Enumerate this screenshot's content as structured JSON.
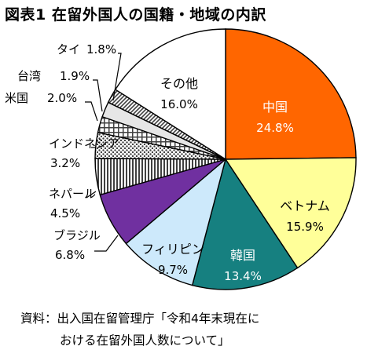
{
  "title": "図表1 在留外国人の国籍・地域の内訳",
  "source": {
    "line1": "資料：出入国在留管理庁「令和4年末現在に",
    "line2": "おける在留外国人数について」"
  },
  "chart_data": {
    "type": "pie",
    "unit": "%",
    "slices": [
      {
        "label": "中国",
        "value": 24.8,
        "value_label": "24.8%",
        "color": "#ff6600",
        "pattern": "solid",
        "text_color": "#ffffff"
      },
      {
        "label": "ベトナム",
        "value": 15.9,
        "value_label": "15.9%",
        "color": "#ffff99",
        "pattern": "solid",
        "text_color": "#000000"
      },
      {
        "label": "韓国",
        "value": 13.4,
        "value_label": "13.4%",
        "color": "#168080",
        "pattern": "solid",
        "text_color": "#ffffff"
      },
      {
        "label": "フィリピン",
        "value": 9.7,
        "value_label": "9.7%",
        "color": "#cde9fb",
        "pattern": "solid",
        "text_color": "#000000"
      },
      {
        "label": "ブラジル",
        "value": 6.8,
        "value_label": "6.8%",
        "color": "#7030a0",
        "pattern": "solid",
        "text_color": "#000000"
      },
      {
        "label": "ネパール",
        "value": 4.5,
        "value_label": "4.5%",
        "color": "#404040",
        "pattern": "vertical-lines",
        "text_color": "#000000"
      },
      {
        "label": "インドネシア",
        "value": 3.2,
        "value_label": "3.2%",
        "color": "#404040",
        "pattern": "dots",
        "text_color": "#000000"
      },
      {
        "label": "米国",
        "value": 2.0,
        "value_label": "2.0%",
        "color": "#404040",
        "pattern": "grid",
        "text_color": "#000000"
      },
      {
        "label": "台湾",
        "value": 1.9,
        "value_label": "1.9%",
        "color": "#e6e6e6",
        "pattern": "solid",
        "text_color": "#000000"
      },
      {
        "label": "タイ",
        "value": 1.8,
        "value_label": "1.8%",
        "color": "#404040",
        "pattern": "diagonal-lines",
        "text_color": "#000000"
      },
      {
        "label": "その他",
        "value": 16.0,
        "value_label": "16.0%",
        "color": "#ffffff",
        "pattern": "solid",
        "text_color": "#000000"
      }
    ]
  }
}
